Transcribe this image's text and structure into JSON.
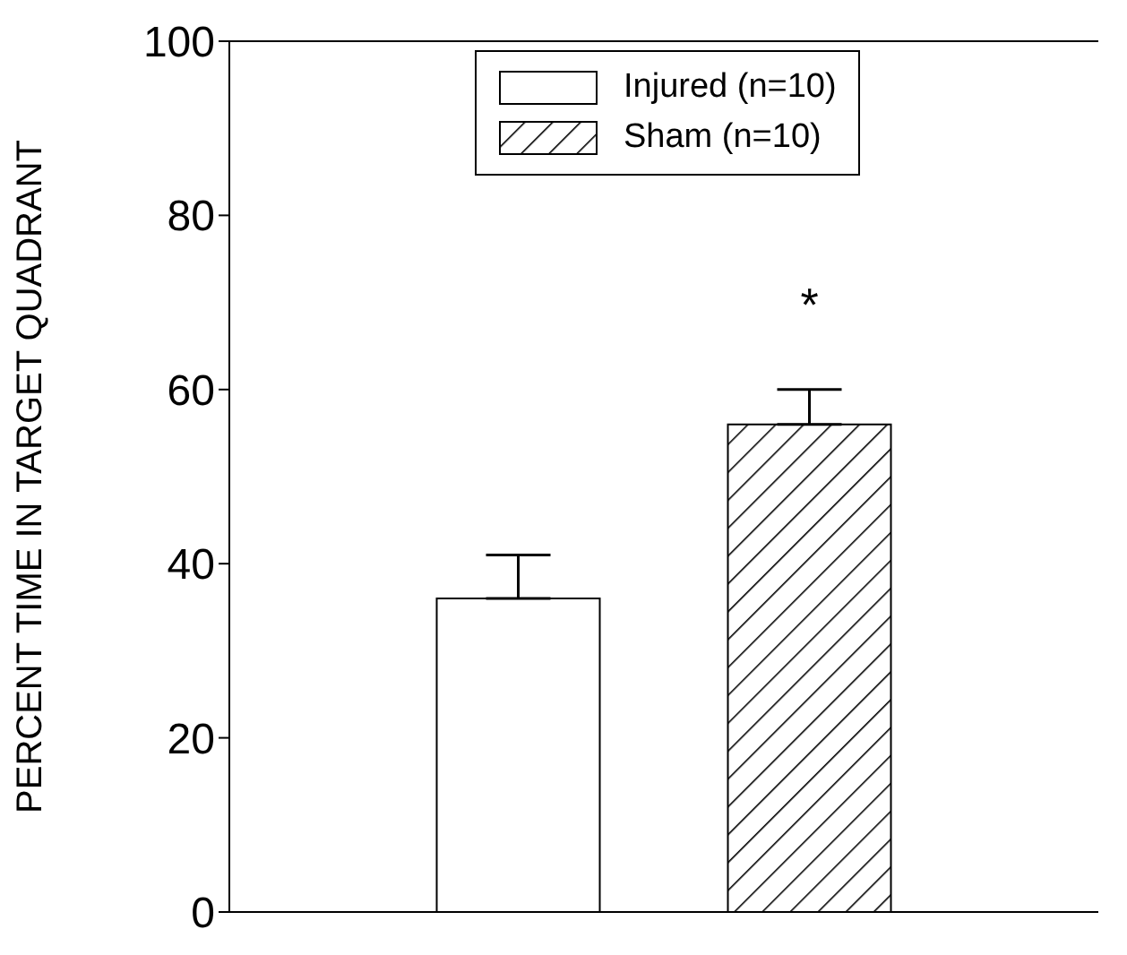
{
  "chart_data": {
    "type": "bar",
    "ylabel": "PERCENT TIME IN TARGET QUADRANT",
    "categories": [
      null,
      null
    ],
    "series": [
      {
        "name": "Injured (n=10)",
        "color": "#ffffff",
        "values": [
          36,
          null
        ],
        "errors": [
          [
            36,
            41
          ],
          null
        ]
      },
      {
        "name": "Sham (n=10)",
        "color": "#000000",
        "values": [
          null,
          56
        ],
        "errors": [
          null,
          [
            56,
            60
          ]
        ]
      }
    ],
    "ylim": [
      0,
      100
    ],
    "yticks": [
      0,
      20,
      40,
      60,
      80,
      100
    ],
    "legend": "top",
    "annotations": [
      "*"
    ]
  }
}
